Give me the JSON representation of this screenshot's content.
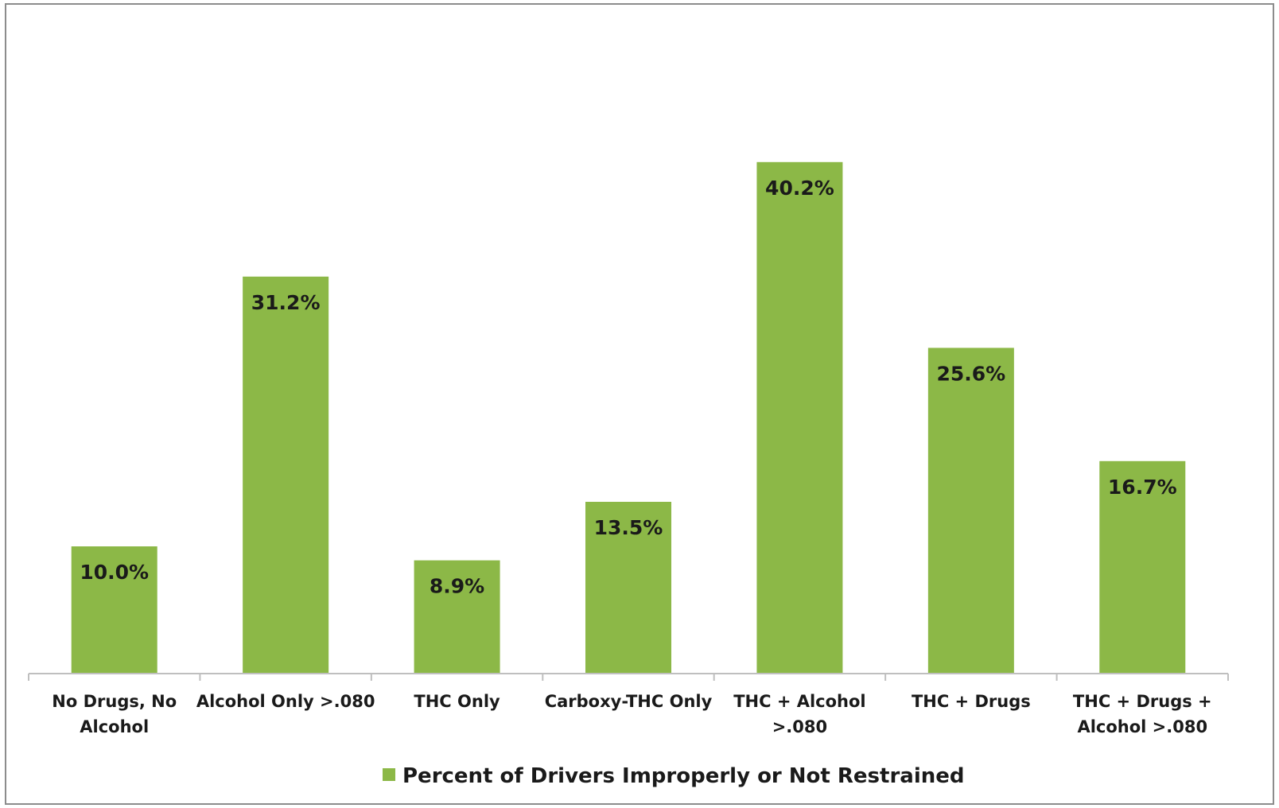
{
  "chart_data": {
    "type": "bar",
    "categories": [
      [
        "No Drugs, No",
        "Alcohol"
      ],
      [
        "Alcohol Only >.080"
      ],
      [
        "THC Only"
      ],
      [
        "Carboxy-THC Only"
      ],
      [
        "THC + Alcohol",
        ">.080"
      ],
      [
        "THC + Drugs"
      ],
      [
        "THC + Drugs +",
        "Alcohol >.080"
      ]
    ],
    "series": [
      {
        "name": "Percent of Drivers Improperly or Not Restrained",
        "values": [
          10.0,
          31.2,
          8.9,
          13.5,
          40.2,
          25.6,
          16.7
        ],
        "data_labels": [
          "10.0%",
          "31.2%",
          "8.9%",
          "13.5%",
          "40.2%",
          "25.6%",
          "16.7%"
        ],
        "color": "#8cb847"
      }
    ],
    "ylim": [
      0,
      48
    ],
    "grid": false,
    "legend_position": "bottom"
  }
}
